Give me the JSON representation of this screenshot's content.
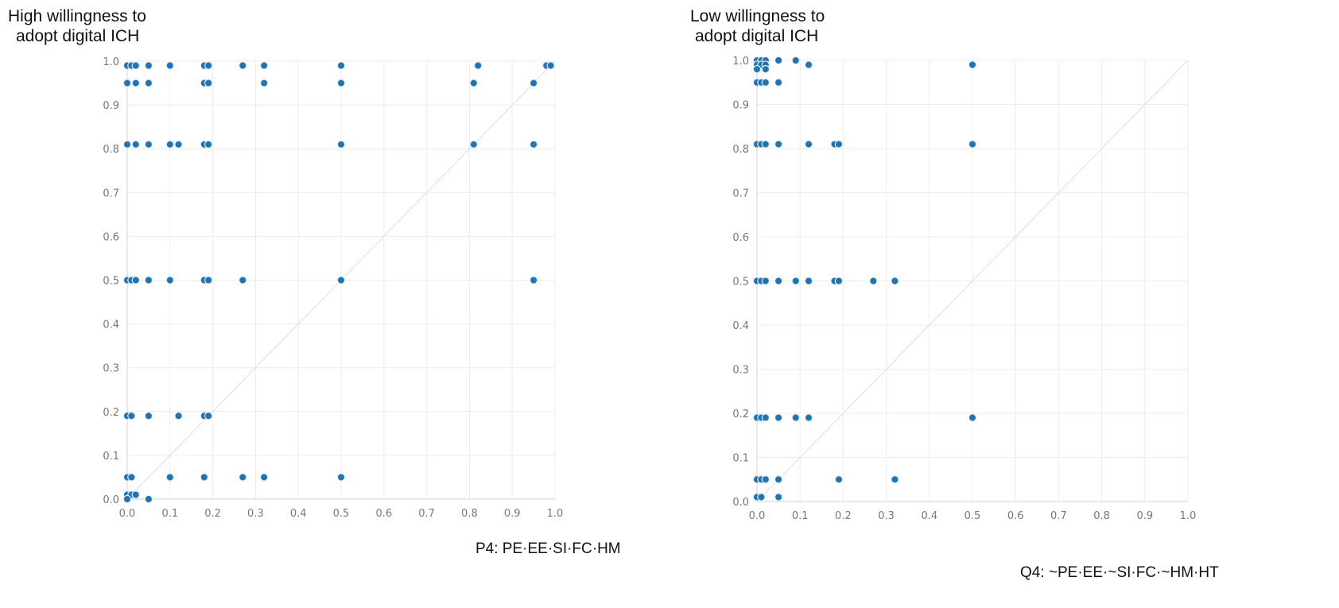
{
  "chart_data": [
    {
      "type": "scatter",
      "title": "High willingness to adopt digital ICH",
      "title_lines": [
        "High willingness to",
        "adopt digital ICH"
      ],
      "caption": "P4:  PE·EE·SI·FC·HM",
      "xlim": [
        0,
        1
      ],
      "ylim": [
        0,
        1
      ],
      "x_ticks": [
        "0.0",
        "0.1",
        "0.2",
        "0.3",
        "0.4",
        "0.5",
        "0.6",
        "0.7",
        "0.8",
        "0.9",
        "1.0"
      ],
      "y_ticks": [
        "0.0",
        "0.1",
        "0.2",
        "0.3",
        "0.4",
        "0.5",
        "0.6",
        "0.7",
        "0.8",
        "0.9",
        "1.0"
      ],
      "grid": true,
      "diagonal": true,
      "points": [
        [
          0.0,
          0.99
        ],
        [
          0.01,
          0.99
        ],
        [
          0.02,
          0.99
        ],
        [
          0.05,
          0.99
        ],
        [
          0.1,
          0.99
        ],
        [
          0.18,
          0.99
        ],
        [
          0.19,
          0.99
        ],
        [
          0.27,
          0.99
        ],
        [
          0.32,
          0.99
        ],
        [
          0.5,
          0.99
        ],
        [
          0.82,
          0.99
        ],
        [
          0.98,
          0.99
        ],
        [
          0.99,
          0.99
        ],
        [
          0.0,
          0.95
        ],
        [
          0.02,
          0.95
        ],
        [
          0.05,
          0.95
        ],
        [
          0.18,
          0.95
        ],
        [
          0.19,
          0.95
        ],
        [
          0.32,
          0.95
        ],
        [
          0.5,
          0.95
        ],
        [
          0.81,
          0.95
        ],
        [
          0.95,
          0.95
        ],
        [
          0.0,
          0.81
        ],
        [
          0.02,
          0.81
        ],
        [
          0.05,
          0.81
        ],
        [
          0.1,
          0.81
        ],
        [
          0.12,
          0.81
        ],
        [
          0.18,
          0.81
        ],
        [
          0.19,
          0.81
        ],
        [
          0.5,
          0.81
        ],
        [
          0.81,
          0.81
        ],
        [
          0.95,
          0.81
        ],
        [
          0.0,
          0.5
        ],
        [
          0.01,
          0.5
        ],
        [
          0.02,
          0.5
        ],
        [
          0.05,
          0.5
        ],
        [
          0.1,
          0.5
        ],
        [
          0.18,
          0.5
        ],
        [
          0.19,
          0.5
        ],
        [
          0.27,
          0.5
        ],
        [
          0.5,
          0.5
        ],
        [
          0.95,
          0.5
        ],
        [
          0.0,
          0.19
        ],
        [
          0.01,
          0.19
        ],
        [
          0.05,
          0.19
        ],
        [
          0.12,
          0.19
        ],
        [
          0.18,
          0.19
        ],
        [
          0.19,
          0.19
        ],
        [
          0.0,
          0.05
        ],
        [
          0.01,
          0.05
        ],
        [
          0.1,
          0.05
        ],
        [
          0.18,
          0.05
        ],
        [
          0.27,
          0.05
        ],
        [
          0.32,
          0.05
        ],
        [
          0.5,
          0.05
        ],
        [
          0.0,
          0.01
        ],
        [
          0.01,
          0.01
        ],
        [
          0.02,
          0.01
        ],
        [
          0.0,
          0.0
        ],
        [
          0.05,
          0.0
        ]
      ]
    },
    {
      "type": "scatter",
      "title": "Low willingness to adopt digital ICH",
      "title_lines": [
        "Low willingness to",
        "adopt digital ICH"
      ],
      "caption": "Q4:  ~PE·EE·~SI·FC·~HM·HT",
      "xlim": [
        0,
        1
      ],
      "ylim": [
        0,
        1
      ],
      "x_ticks": [
        "0.0",
        "0.1",
        "0.2",
        "0.3",
        "0.4",
        "0.5",
        "0.6",
        "0.7",
        "0.8",
        "0.9",
        "1.0"
      ],
      "y_ticks": [
        "0.0",
        "0.1",
        "0.2",
        "0.3",
        "0.4",
        "0.5",
        "0.6",
        "0.7",
        "0.8",
        "0.9",
        "1.0"
      ],
      "grid": true,
      "diagonal": true,
      "points": [
        [
          0.0,
          1.0
        ],
        [
          0.01,
          1.0
        ],
        [
          0.02,
          1.0
        ],
        [
          0.05,
          1.0
        ],
        [
          0.09,
          1.0
        ],
        [
          0.0,
          0.99
        ],
        [
          0.01,
          0.99
        ],
        [
          0.02,
          0.99
        ],
        [
          0.12,
          0.99
        ],
        [
          0.5,
          0.99
        ],
        [
          0.0,
          0.98
        ],
        [
          0.02,
          0.98
        ],
        [
          0.0,
          0.95
        ],
        [
          0.01,
          0.95
        ],
        [
          0.02,
          0.95
        ],
        [
          0.05,
          0.95
        ],
        [
          0.0,
          0.81
        ],
        [
          0.01,
          0.81
        ],
        [
          0.02,
          0.81
        ],
        [
          0.05,
          0.81
        ],
        [
          0.12,
          0.81
        ],
        [
          0.18,
          0.81
        ],
        [
          0.19,
          0.81
        ],
        [
          0.5,
          0.81
        ],
        [
          0.0,
          0.5
        ],
        [
          0.01,
          0.5
        ],
        [
          0.02,
          0.5
        ],
        [
          0.05,
          0.5
        ],
        [
          0.09,
          0.5
        ],
        [
          0.12,
          0.5
        ],
        [
          0.18,
          0.5
        ],
        [
          0.19,
          0.5
        ],
        [
          0.27,
          0.5
        ],
        [
          0.32,
          0.5
        ],
        [
          0.0,
          0.19
        ],
        [
          0.01,
          0.19
        ],
        [
          0.02,
          0.19
        ],
        [
          0.05,
          0.19
        ],
        [
          0.09,
          0.19
        ],
        [
          0.12,
          0.19
        ],
        [
          0.5,
          0.19
        ],
        [
          0.0,
          0.05
        ],
        [
          0.01,
          0.05
        ],
        [
          0.02,
          0.05
        ],
        [
          0.05,
          0.05
        ],
        [
          0.19,
          0.05
        ],
        [
          0.32,
          0.05
        ],
        [
          0.0,
          0.01
        ],
        [
          0.01,
          0.01
        ],
        [
          0.05,
          0.01
        ]
      ]
    }
  ]
}
